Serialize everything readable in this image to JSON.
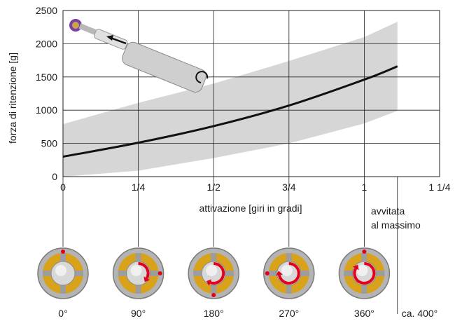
{
  "chart_data": {
    "type": "line",
    "ylabel": "forza di ritenzione [g]",
    "xlabel": "attivazione [giri in gradi]",
    "xlim": [
      0,
      1.25
    ],
    "ylim": [
      0,
      2500
    ],
    "x_ticks": [
      {
        "value": 0,
        "label": "0"
      },
      {
        "value": 0.25,
        "label": "1/4"
      },
      {
        "value": 0.5,
        "label": "1/2"
      },
      {
        "value": 0.75,
        "label": "3/4"
      },
      {
        "value": 1,
        "label": "1"
      },
      {
        "value": 1.25,
        "label": "1 1/4"
      }
    ],
    "y_ticks": [
      0,
      500,
      1000,
      1500,
      2000,
      2500
    ],
    "grid": true,
    "series": [
      {
        "values_x": [
          0,
          0.25,
          0.5,
          0.75,
          1.0,
          1.11
        ],
        "values_y": [
          300,
          510,
          760,
          1070,
          1460,
          1660
        ],
        "color": "#111111"
      }
    ],
    "band": {
      "color": "#d6d6d6",
      "x": [
        0,
        0.25,
        0.5,
        0.75,
        1.0,
        1.11
      ],
      "upper": [
        790,
        1110,
        1400,
        1740,
        2100,
        2330
      ],
      "lower": [
        0,
        90,
        280,
        500,
        800,
        990
      ]
    },
    "annotation": {
      "lines": [
        "avvitata",
        "al massimo"
      ],
      "x": 1.11
    },
    "positions": [
      {
        "label": "0°",
        "x": 0,
        "arrow": "none"
      },
      {
        "label": "90°",
        "x": 0.25,
        "arrow": "quarter"
      },
      {
        "label": "180°",
        "x": 0.5,
        "arrow": "half"
      },
      {
        "label": "270°",
        "x": 0.75,
        "arrow": "three-quarter"
      },
      {
        "label": "360°",
        "x": 1.0,
        "arrow": "full"
      }
    ],
    "final_label": "ca. 400°",
    "colors": {
      "accent": "#e3001b",
      "gold": "#d9a21b",
      "grid": "#222222",
      "band": "#d6d6d6"
    }
  }
}
